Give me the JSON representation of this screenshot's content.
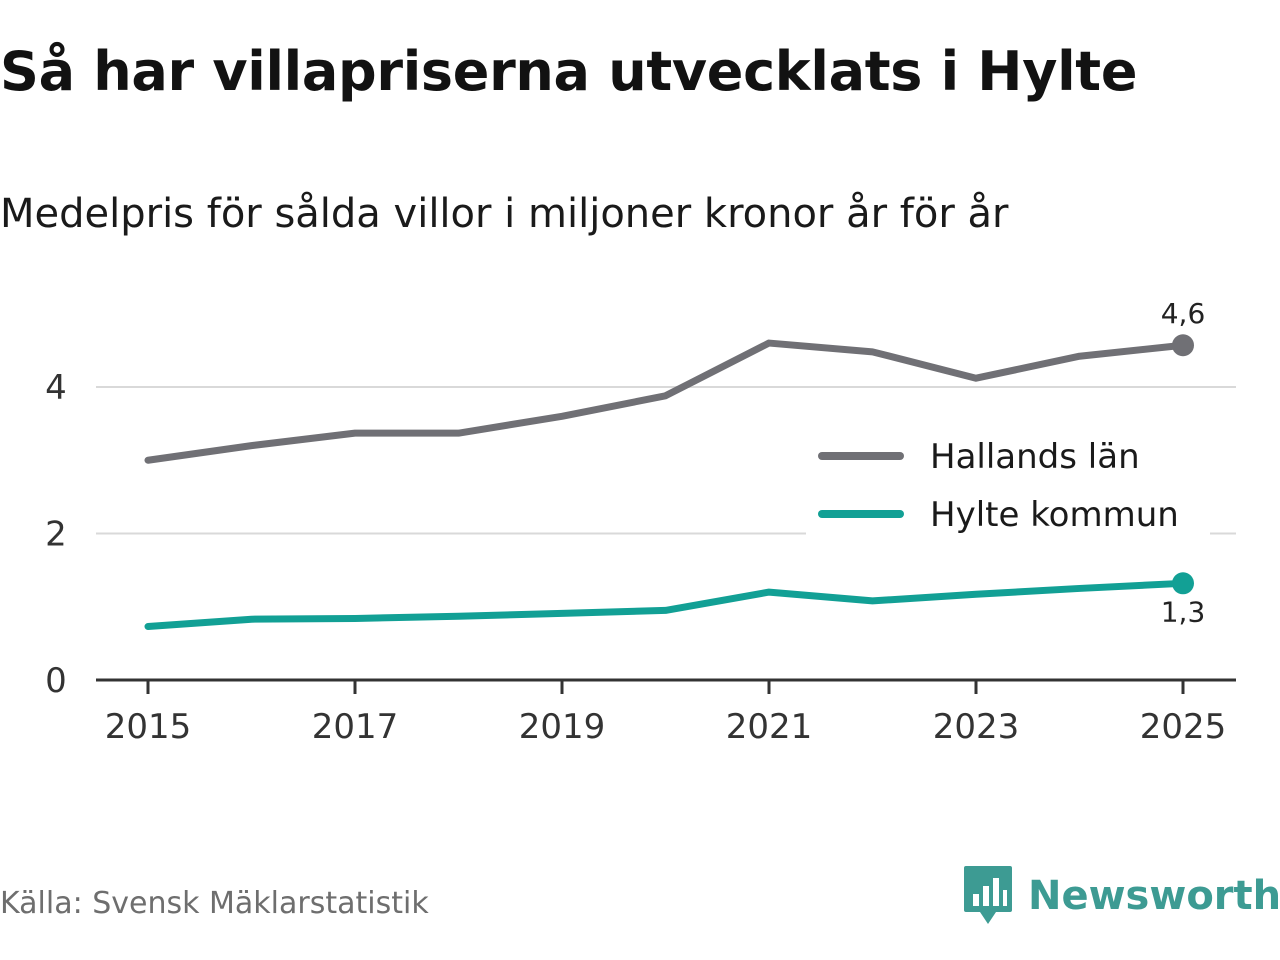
{
  "header": {
    "title": "Så har villapriserna utvecklats i Hylte",
    "subtitle": "Medelpris för sålda villor i miljoner kronor år för år"
  },
  "footer": {
    "source": "Källa: Svensk Mäklarstatistik",
    "brand": "Newsworthy",
    "brand_color": "#3d9b93"
  },
  "chart_data": {
    "type": "line",
    "title": "Så har villapriserna utvecklats i Hylte",
    "subtitle": "Medelpris för sålda villor i miljoner kronor år för år",
    "xlabel": "",
    "ylabel": "",
    "x": [
      2015,
      2016,
      2017,
      2018,
      2019,
      2020,
      2021,
      2022,
      2023,
      2024,
      2025
    ],
    "x_tick_labels": [
      "2015",
      "2017",
      "2019",
      "2021",
      "2023",
      "2025"
    ],
    "x_ticks": [
      2015,
      2017,
      2019,
      2021,
      2023,
      2025
    ],
    "y_ticks": [
      0,
      2,
      4
    ],
    "y_tick_labels": [
      "0",
      "2",
      "4"
    ],
    "xlim": [
      2014.5,
      2025.5
    ],
    "ylim": [
      0,
      5
    ],
    "grid": true,
    "legend_position": "right",
    "series": [
      {
        "name": "Hallands län",
        "color": "#707075",
        "values": [
          3.0,
          3.2,
          3.37,
          3.37,
          3.6,
          3.88,
          4.6,
          4.48,
          4.12,
          4.42,
          4.57
        ],
        "end_label": "4,6",
        "end_label_position": "above"
      },
      {
        "name": "Hylte kommun",
        "color": "#12a095",
        "values": [
          0.73,
          0.83,
          0.84,
          0.87,
          0.91,
          0.95,
          1.2,
          1.08,
          1.17,
          1.25,
          1.32
        ],
        "end_label": "1,3",
        "end_label_position": "below"
      }
    ]
  }
}
